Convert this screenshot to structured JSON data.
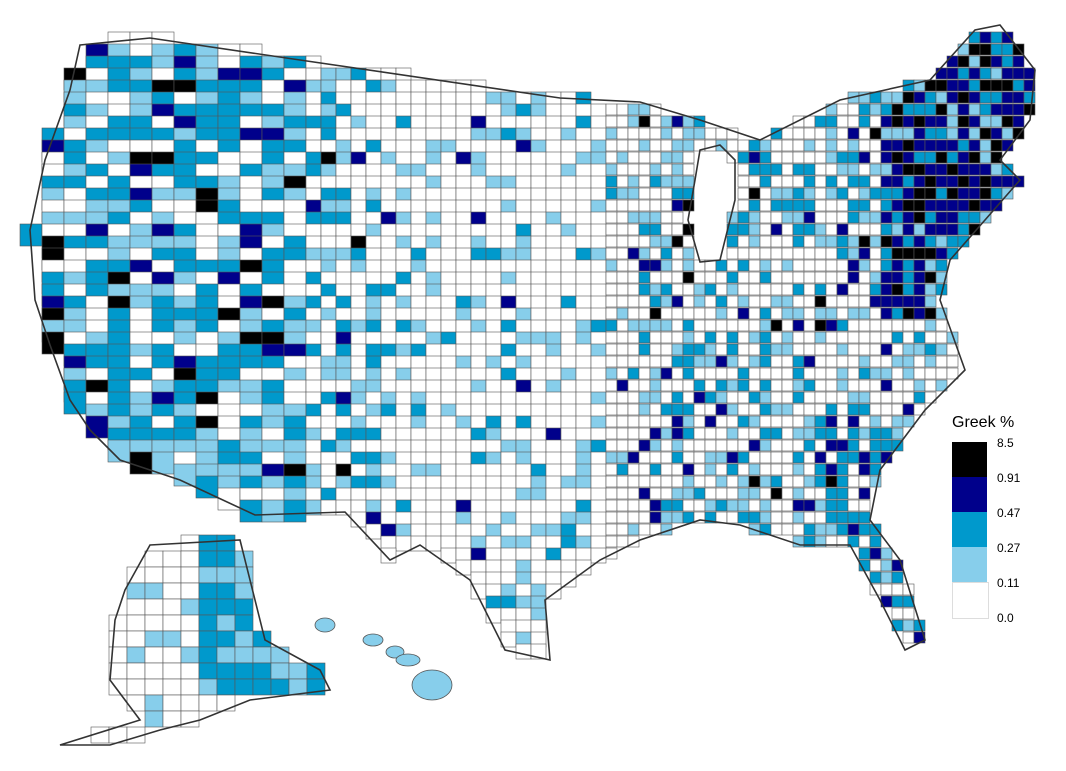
{
  "legend": {
    "title": "Greek %",
    "breaks": [
      "8.5",
      "0.91",
      "0.47",
      "0.27",
      "0.11",
      "0.0"
    ],
    "bins": [
      {
        "from": "0.91",
        "to": "8.5",
        "color": "#000000"
      },
      {
        "from": "0.47",
        "to": "0.91",
        "color": "#00008b"
      },
      {
        "from": "0.27",
        "to": "0.47",
        "color": "#0099cc"
      },
      {
        "from": "0.11",
        "to": "0.27",
        "color": "#87ceeb"
      },
      {
        "from": "0.0",
        "to": "0.11",
        "color": "#ffffff"
      }
    ]
  },
  "colors": {
    "border": "#555555",
    "background": "#ffffff"
  }
}
